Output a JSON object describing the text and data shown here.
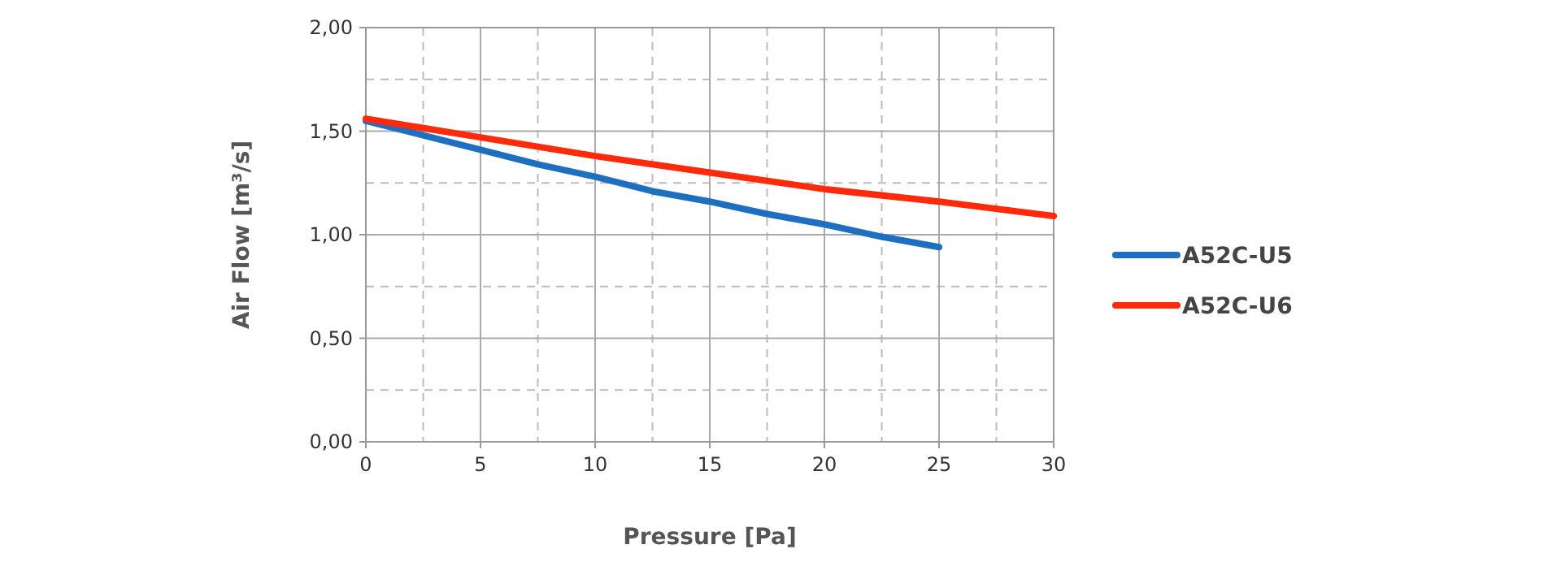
{
  "chart_data": {
    "type": "line",
    "xlabel": "Pressure [Pa]",
    "ylabel": "Air Flow [m³/s]",
    "xlim": [
      0,
      30
    ],
    "xticks": [
      0,
      5,
      10,
      15,
      20,
      25,
      30
    ],
    "ylim": [
      0,
      2
    ],
    "yticks": [
      {
        "value": 0,
        "label": "0,00"
      },
      {
        "value": 0.5,
        "label": "0,50"
      },
      {
        "value": 1,
        "label": "1,00"
      },
      {
        "value": 1.5,
        "label": "1,50"
      },
      {
        "value": 2,
        "label": "2,00"
      }
    ],
    "grid": true,
    "legend": "right",
    "marker": "none",
    "line_style": "solid",
    "series": [
      {
        "name": "A52C-U5",
        "color": "#1f6fc0",
        "x": [
          0,
          2.5,
          5,
          7.5,
          10,
          12.5,
          15,
          17.5,
          20,
          22.5,
          25
        ],
        "values": [
          1.55,
          1.48,
          1.41,
          1.34,
          1.28,
          1.21,
          1.16,
          1.1,
          1.05,
          0.99,
          0.94
        ]
      },
      {
        "name": "A52C-U6",
        "color": "#ff2a0a",
        "x": [
          0,
          5,
          10,
          15,
          20,
          25,
          30
        ],
        "values": [
          1.56,
          1.47,
          1.38,
          1.3,
          1.22,
          1.16,
          1.09
        ]
      }
    ]
  }
}
